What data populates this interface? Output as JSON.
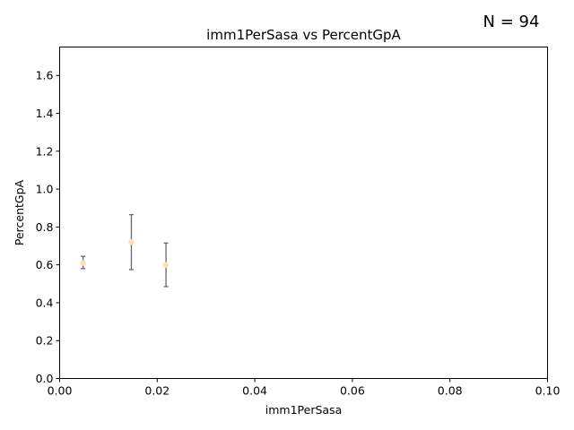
{
  "chart_data": {
    "type": "scatter",
    "title": "imm1PerSasa vs PercentGpA",
    "annotation": "N = 94",
    "xlabel": "imm1PerSasa",
    "ylabel": "PercentGpA",
    "xlim": [
      0.0,
      0.1
    ],
    "ylim": [
      0.0,
      1.75
    ],
    "xticks": [
      "0.00",
      "0.02",
      "0.04",
      "0.06",
      "0.08",
      "0.10"
    ],
    "yticks": [
      "0.0",
      "0.2",
      "0.4",
      "0.6",
      "0.8",
      "1.0",
      "1.2",
      "1.4",
      "1.6"
    ],
    "grid": false,
    "point_color": "#ffe0b0",
    "errorbar_color": "#666666",
    "points": [
      {
        "x": 0.0048,
        "y": 0.61,
        "yerr_low": 0.03,
        "yerr_high": 0.035
      },
      {
        "x": 0.0147,
        "y": 0.72,
        "yerr_low": 0.145,
        "yerr_high": 0.145
      },
      {
        "x": 0.0218,
        "y": 0.6,
        "yerr_low": 0.115,
        "yerr_high": 0.115
      }
    ]
  }
}
